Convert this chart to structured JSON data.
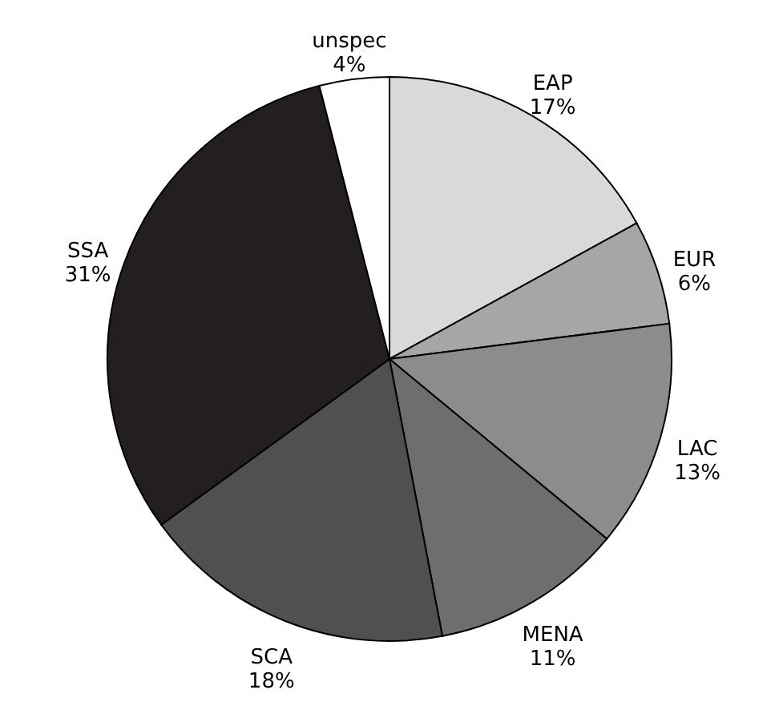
{
  "chart_data": {
    "type": "pie",
    "categories": [
      "EAP",
      "EUR",
      "LAC",
      "MENA",
      "SCA",
      "SSA",
      "unspec"
    ],
    "values": [
      17,
      6,
      13,
      11,
      18,
      31,
      4
    ],
    "value_labels": [
      "17%",
      "6%",
      "13%",
      "11%",
      "18%",
      "31%",
      "4%"
    ],
    "colors": [
      "#d9d9d9",
      "#a6a6a6",
      "#8c8c8c",
      "#6e6e6e",
      "#505050",
      "#231f20",
      "#ffffff"
    ]
  }
}
